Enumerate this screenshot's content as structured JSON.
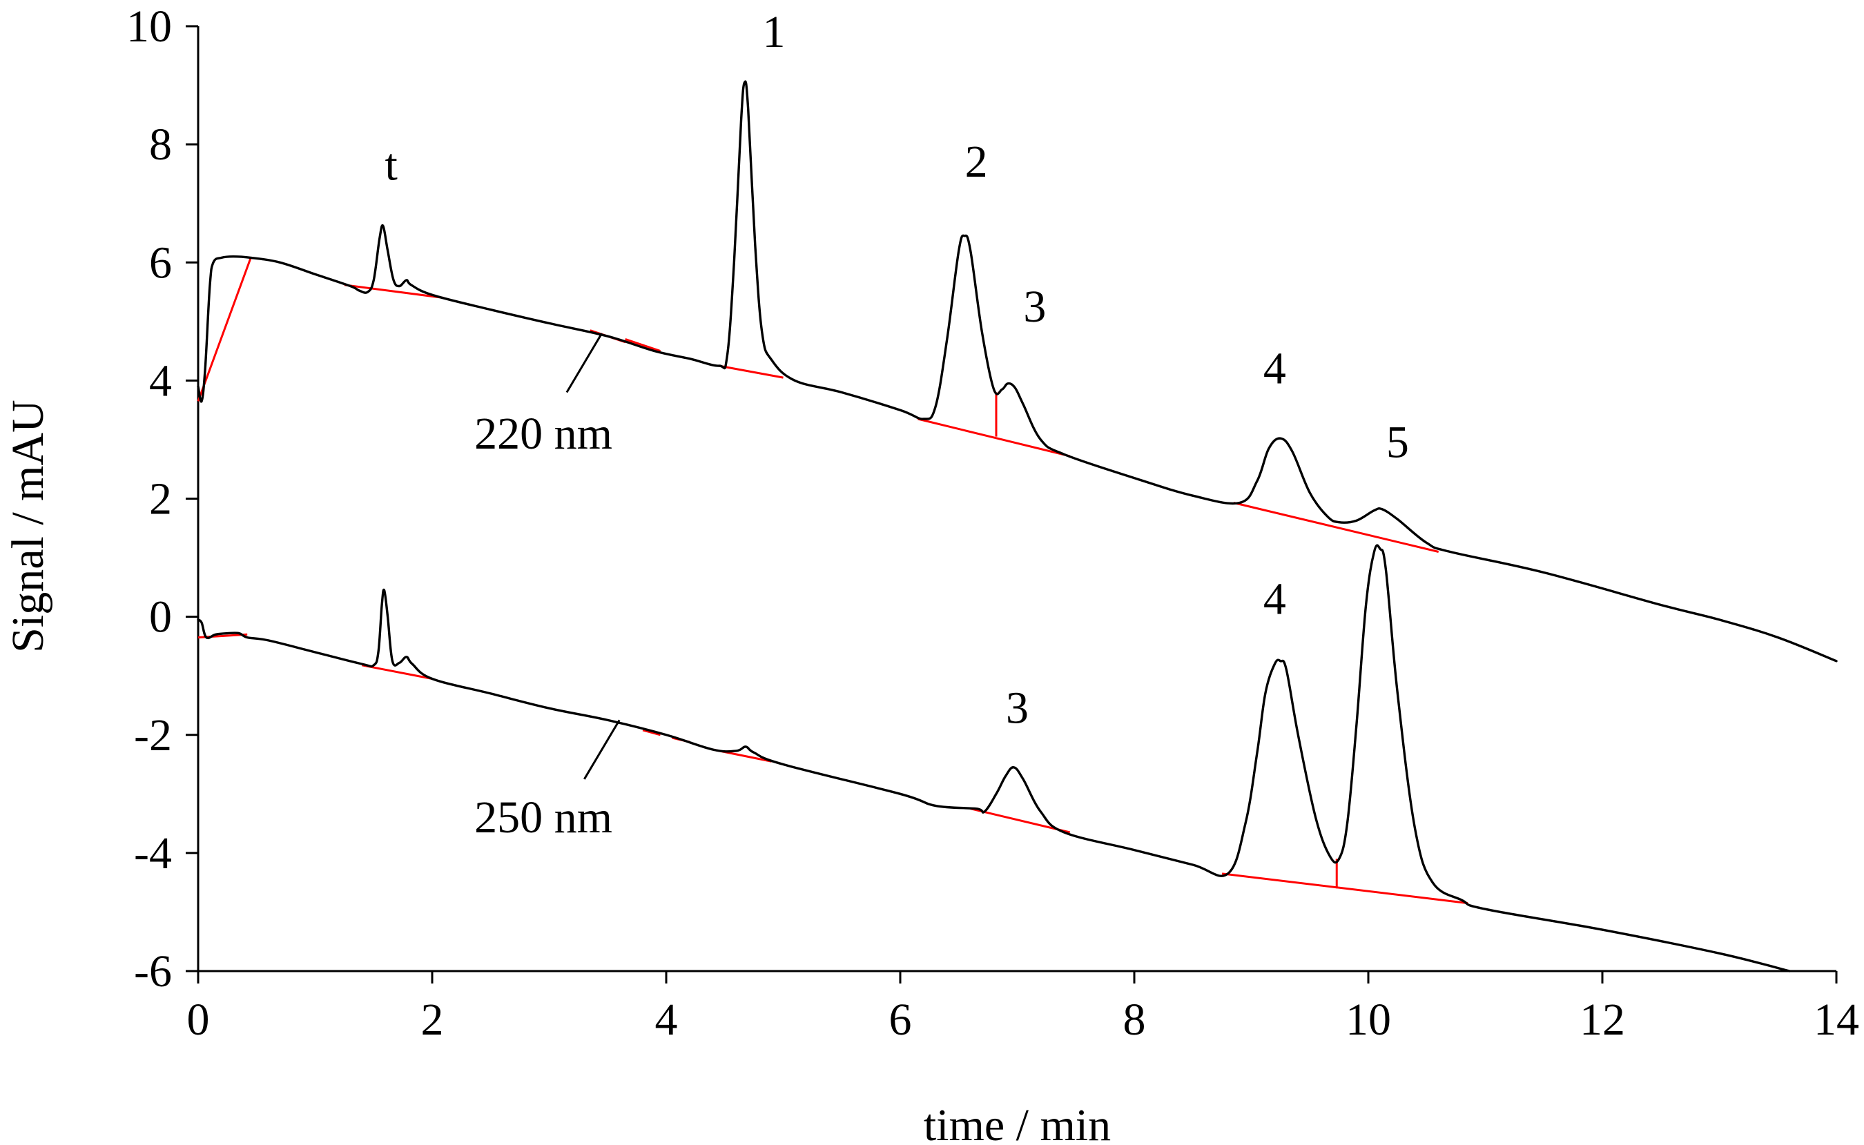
{
  "chart_data": {
    "type": "line",
    "title": "",
    "xlabel": "time / min",
    "ylabel": "Signal / mAU",
    "xlim": [
      0,
      14
    ],
    "ylim": [
      -6,
      10
    ],
    "x_ticks": [
      "0",
      "2",
      "4",
      "6",
      "8",
      "10",
      "12",
      "14"
    ],
    "y_ticks": [
      "10",
      "8",
      "6",
      "4",
      "2",
      "0",
      "-2",
      "-4",
      "-6"
    ],
    "grid": false,
    "legend": "none",
    "series": [
      {
        "name": "220 nm",
        "color": "#000000",
        "points": [
          [
            0.0,
            3.9
          ],
          [
            0.03,
            3.65
          ],
          [
            0.06,
            4.2
          ],
          [
            0.1,
            5.6
          ],
          [
            0.13,
            6.0
          ],
          [
            0.2,
            6.08
          ],
          [
            0.3,
            6.1
          ],
          [
            0.45,
            6.08
          ],
          [
            0.7,
            6.0
          ],
          [
            1.0,
            5.8
          ],
          [
            1.3,
            5.6
          ],
          [
            1.38,
            5.52
          ],
          [
            1.45,
            5.5
          ],
          [
            1.5,
            5.7
          ],
          [
            1.55,
            6.4
          ],
          [
            1.58,
            6.62
          ],
          [
            1.62,
            6.2
          ],
          [
            1.67,
            5.7
          ],
          [
            1.72,
            5.6
          ],
          [
            1.78,
            5.7
          ],
          [
            1.82,
            5.62
          ],
          [
            2.0,
            5.45
          ],
          [
            2.5,
            5.2
          ],
          [
            3.0,
            4.97
          ],
          [
            3.5,
            4.75
          ],
          [
            3.9,
            4.5
          ],
          [
            4.2,
            4.37
          ],
          [
            4.45,
            4.25
          ],
          [
            4.52,
            4.4
          ],
          [
            4.58,
            6.0
          ],
          [
            4.64,
            8.4
          ],
          [
            4.67,
            9.05
          ],
          [
            4.7,
            8.6
          ],
          [
            4.76,
            6.3
          ],
          [
            4.82,
            4.8
          ],
          [
            4.9,
            4.35
          ],
          [
            5.1,
            4.0
          ],
          [
            5.5,
            3.8
          ],
          [
            6.0,
            3.5
          ],
          [
            6.2,
            3.35
          ],
          [
            6.3,
            3.55
          ],
          [
            6.4,
            4.7
          ],
          [
            6.5,
            6.2
          ],
          [
            6.55,
            6.45
          ],
          [
            6.6,
            6.2
          ],
          [
            6.7,
            4.8
          ],
          [
            6.8,
            3.85
          ],
          [
            6.87,
            3.85
          ],
          [
            6.92,
            3.95
          ],
          [
            6.98,
            3.88
          ],
          [
            7.05,
            3.6
          ],
          [
            7.2,
            3.0
          ],
          [
            7.4,
            2.75
          ],
          [
            8.0,
            2.35
          ],
          [
            8.5,
            2.05
          ],
          [
            8.9,
            1.93
          ],
          [
            9.05,
            2.3
          ],
          [
            9.15,
            2.85
          ],
          [
            9.25,
            3.02
          ],
          [
            9.35,
            2.8
          ],
          [
            9.5,
            2.1
          ],
          [
            9.65,
            1.7
          ],
          [
            9.75,
            1.6
          ],
          [
            9.9,
            1.63
          ],
          [
            10.05,
            1.8
          ],
          [
            10.12,
            1.82
          ],
          [
            10.25,
            1.65
          ],
          [
            10.5,
            1.25
          ],
          [
            10.7,
            1.1
          ],
          [
            11.5,
            0.75
          ],
          [
            12.5,
            0.2
          ],
          [
            13.0,
            -0.05
          ],
          [
            13.5,
            -0.35
          ],
          [
            14.0,
            -0.75
          ]
        ]
      },
      {
        "name": "250 nm",
        "color": "#000000",
        "points": [
          [
            0.0,
            -0.05
          ],
          [
            0.03,
            -0.1
          ],
          [
            0.07,
            -0.35
          ],
          [
            0.15,
            -0.3
          ],
          [
            0.25,
            -0.28
          ],
          [
            0.35,
            -0.28
          ],
          [
            0.42,
            -0.35
          ],
          [
            0.6,
            -0.4
          ],
          [
            1.0,
            -0.6
          ],
          [
            1.4,
            -0.8
          ],
          [
            1.5,
            -0.82
          ],
          [
            1.54,
            -0.6
          ],
          [
            1.57,
            0.2
          ],
          [
            1.59,
            0.45
          ],
          [
            1.62,
            0.0
          ],
          [
            1.66,
            -0.75
          ],
          [
            1.72,
            -0.78
          ],
          [
            1.78,
            -0.68
          ],
          [
            1.83,
            -0.8
          ],
          [
            2.0,
            -1.05
          ],
          [
            2.5,
            -1.3
          ],
          [
            3.0,
            -1.55
          ],
          [
            3.5,
            -1.75
          ],
          [
            4.0,
            -2.0
          ],
          [
            4.4,
            -2.25
          ],
          [
            4.6,
            -2.27
          ],
          [
            4.68,
            -2.2
          ],
          [
            4.75,
            -2.3
          ],
          [
            5.0,
            -2.5
          ],
          [
            6.0,
            -3.0
          ],
          [
            6.3,
            -3.2
          ],
          [
            6.65,
            -3.25
          ],
          [
            6.72,
            -3.3
          ],
          [
            6.82,
            -3.0
          ],
          [
            6.9,
            -2.7
          ],
          [
            6.97,
            -2.55
          ],
          [
            7.05,
            -2.75
          ],
          [
            7.2,
            -3.3
          ],
          [
            7.4,
            -3.65
          ],
          [
            8.0,
            -3.95
          ],
          [
            8.5,
            -4.2
          ],
          [
            8.8,
            -4.35
          ],
          [
            8.95,
            -3.5
          ],
          [
            9.05,
            -2.3
          ],
          [
            9.12,
            -1.3
          ],
          [
            9.2,
            -0.8
          ],
          [
            9.25,
            -0.75
          ],
          [
            9.3,
            -0.9
          ],
          [
            9.4,
            -2.0
          ],
          [
            9.55,
            -3.4
          ],
          [
            9.67,
            -4.05
          ],
          [
            9.75,
            -4.1
          ],
          [
            9.82,
            -3.5
          ],
          [
            9.9,
            -1.8
          ],
          [
            9.98,
            0.2
          ],
          [
            10.05,
            1.1
          ],
          [
            10.1,
            1.15
          ],
          [
            10.15,
            0.8
          ],
          [
            10.25,
            -1.3
          ],
          [
            10.4,
            -3.6
          ],
          [
            10.55,
            -4.5
          ],
          [
            10.8,
            -4.8
          ],
          [
            11.0,
            -4.95
          ],
          [
            12.0,
            -5.3
          ],
          [
            13.0,
            -5.7
          ],
          [
            13.6,
            -6.0
          ]
        ]
      }
    ],
    "baselines": [
      [
        [
          0.0,
          3.65
        ],
        [
          0.45,
          6.08
        ]
      ],
      [
        [
          1.25,
          5.62
        ],
        [
          2.1,
          5.4
        ]
      ],
      [
        [
          3.35,
          4.85
        ],
        [
          3.65,
          4.65
        ]
      ],
      [
        [
          3.65,
          4.7
        ],
        [
          3.95,
          4.5
        ]
      ],
      [
        [
          4.45,
          4.25
        ],
        [
          5.0,
          4.05
        ]
      ],
      [
        [
          6.15,
          3.35
        ],
        [
          7.45,
          2.72
        ]
      ],
      [
        [
          6.82,
          3.05
        ],
        [
          6.82,
          3.8
        ]
      ],
      [
        [
          8.85,
          1.93
        ],
        [
          10.6,
          1.1
        ]
      ],
      [
        [
          0.0,
          -0.35
        ],
        [
          0.42,
          -0.3
        ]
      ],
      [
        [
          1.4,
          -0.82
        ],
        [
          2.0,
          -1.05
        ]
      ],
      [
        [
          3.8,
          -1.92
        ],
        [
          3.95,
          -2.0
        ]
      ],
      [
        [
          4.05,
          -2.05
        ],
        [
          4.2,
          -2.12
        ]
      ],
      [
        [
          4.4,
          -2.25
        ],
        [
          4.9,
          -2.45
        ]
      ],
      [
        [
          6.6,
          -3.25
        ],
        [
          7.45,
          -3.65
        ]
      ],
      [
        [
          8.75,
          -4.35
        ],
        [
          10.85,
          -4.85
        ]
      ],
      [
        [
          9.73,
          -4.1
        ],
        [
          9.73,
          -4.6
        ]
      ]
    ],
    "annotations": [
      {
        "text": "t",
        "x": 1.65,
        "y": 7.4
      },
      {
        "text": "1",
        "x": 4.92,
        "y": 9.65
      },
      {
        "text": "2",
        "x": 6.65,
        "y": 7.45
      },
      {
        "text": "3",
        "x": 7.15,
        "y": 5.0
      },
      {
        "text": "4",
        "x": 9.2,
        "y": 3.95
      },
      {
        "text": "5",
        "x": 10.25,
        "y": 2.7
      },
      {
        "text": "4",
        "x": 9.2,
        "y": 0.05
      },
      {
        "text": "3",
        "x": 7.0,
        "y": -1.8
      }
    ],
    "trace_labels": [
      {
        "text": "220 nm",
        "x": 2.95,
        "y": 2.85,
        "leader": [
          [
            3.45,
            4.8
          ],
          [
            3.15,
            3.8
          ]
        ]
      },
      {
        "text": "250 nm",
        "x": 2.95,
        "y": -3.65,
        "leader": [
          [
            3.6,
            -1.75
          ],
          [
            3.3,
            -2.75
          ]
        ]
      }
    ]
  }
}
